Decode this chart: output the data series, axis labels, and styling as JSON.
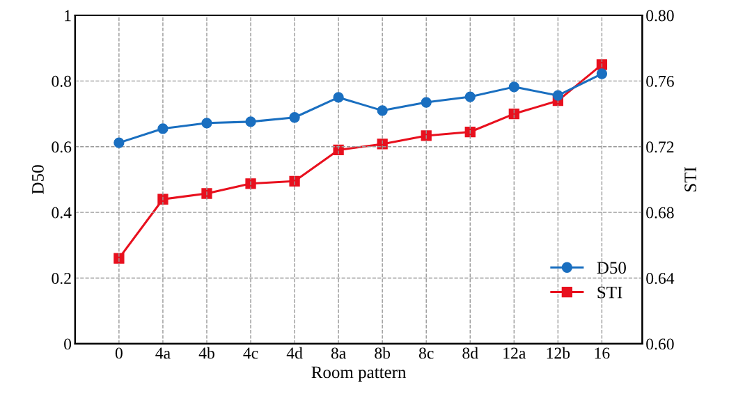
{
  "chart_data": {
    "type": "line",
    "xlabel": "Room pattern",
    "ylabel": "D50",
    "y2label": "STI",
    "categories": [
      "0",
      "4a",
      "4b",
      "4c",
      "4d",
      "8a",
      "8b",
      "8c",
      "8d",
      "12a",
      "12b",
      "16"
    ],
    "series": [
      {
        "name": "D50",
        "color": "#1a6fc0",
        "marker": "circle",
        "values": [
          0.612,
          0.655,
          0.672,
          0.676,
          0.689,
          0.75,
          0.71,
          0.735,
          0.752,
          0.782,
          0.756,
          0.822
        ]
      },
      {
        "name": "STI",
        "color": "#e8101e",
        "marker": "square",
        "axis": "y2",
        "values": [
          0.652,
          0.688,
          0.6915,
          0.6975,
          0.699,
          0.718,
          0.7216,
          0.7267,
          0.729,
          0.74,
          0.748,
          0.77
        ]
      }
    ],
    "ylim": [
      0,
      1
    ],
    "yticks": [
      0,
      0.2,
      0.4,
      0.6,
      0.8,
      1
    ],
    "y2lim": [
      0.6,
      0.8
    ],
    "y2ticks": [
      {
        "value": 0.6,
        "label": "0.60"
      },
      {
        "value": 0.64,
        "label": "0.64"
      },
      {
        "value": 0.68,
        "label": "0.68"
      },
      {
        "value": 0.72,
        "label": "0.72"
      },
      {
        "value": 0.76,
        "label": "0.76"
      },
      {
        "value": 0.8,
        "label": "0.80"
      }
    ],
    "grid": true,
    "legend": "lower right",
    "line_style": "solid"
  }
}
